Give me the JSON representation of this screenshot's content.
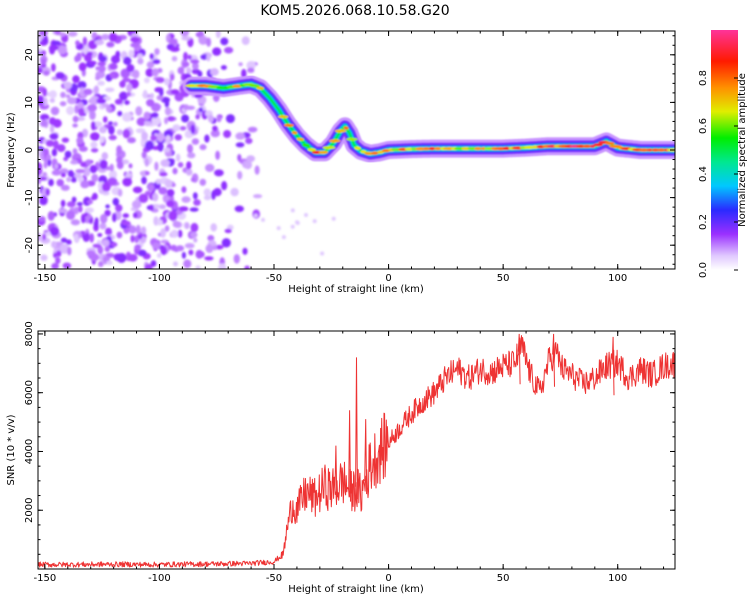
{
  "title": "KOM5.2026.068.10.58.G20",
  "chart_data": [
    {
      "type": "heatmap",
      "name": "spectrogram",
      "xlabel": "Height of straight line (km)",
      "ylabel": "Frequency (Hz)",
      "xlim": [
        -153,
        125
      ],
      "ylim": [
        -25,
        25
      ],
      "xticks": [
        -150,
        -100,
        -50,
        0,
        50,
        100
      ],
      "yticks": [
        20,
        10,
        0,
        -10,
        -20
      ],
      "noise_region_x": [
        -153,
        -55
      ],
      "track": {
        "x": [
          -86,
          -80,
          -72,
          -65,
          -60,
          -56,
          -52,
          -48,
          -44,
          -40,
          -36,
          -32,
          -28,
          -24,
          -21,
          -19,
          -17,
          -15,
          -12,
          -8,
          -4,
          0,
          10,
          20,
          30,
          40,
          50,
          60,
          70,
          80,
          90,
          95,
          100,
          110,
          125
        ],
        "frequency": [
          13.5,
          13.5,
          13.0,
          13.5,
          13.8,
          13.0,
          11.0,
          8.5,
          5.5,
          3.0,
          1.0,
          -0.5,
          -0.5,
          1.5,
          4.0,
          5.0,
          3.5,
          1.0,
          -0.2,
          -0.8,
          -0.5,
          0.0,
          0.2,
          0.3,
          0.3,
          0.3,
          0.3,
          0.5,
          0.8,
          0.8,
          0.8,
          1.8,
          0.5,
          0.0,
          0.0
        ],
        "amplitude": [
          0.75,
          0.85,
          0.7,
          0.75,
          0.8,
          0.7,
          0.65,
          0.6,
          0.85,
          0.7,
          0.75,
          0.9,
          0.75,
          0.7,
          0.85,
          0.8,
          0.65,
          0.85,
          0.8,
          0.7,
          0.9,
          0.85,
          0.75,
          0.95,
          0.75,
          0.8,
          0.85,
          0.8,
          0.9,
          0.95,
          0.9,
          0.95,
          0.85,
          0.8,
          0.9
        ]
      }
    },
    {
      "type": "colorbar",
      "label": "Normalized spectral amplitude",
      "range": [
        0,
        1
      ],
      "ticks": [
        "0.0",
        "0.2",
        "0.4",
        "0.6",
        "0.8"
      ]
    },
    {
      "type": "line",
      "name": "snr",
      "xlabel": "Height of straight line (km)",
      "ylabel": "SNR (10 * v/v)",
      "xlim": [
        -153,
        125
      ],
      "ylim": [
        0,
        8100
      ],
      "xticks": [
        -150,
        -100,
        -50,
        0,
        50,
        100
      ],
      "yticks": [
        8000,
        6000,
        4000,
        2000
      ],
      "color": "#ee3333",
      "series": {
        "x": [
          -153,
          -140,
          -120,
          -100,
          -80,
          -60,
          -50,
          -46,
          -44,
          -42,
          -40,
          -36,
          -32,
          -28,
          -24,
          -20,
          -16,
          -14,
          -12,
          -8,
          -4,
          0,
          5,
          10,
          15,
          20,
          25,
          30,
          35,
          40,
          45,
          50,
          55,
          58,
          62,
          66,
          70,
          73,
          76,
          80,
          85,
          90,
          95,
          100,
          105,
          110,
          115,
          120,
          125
        ],
        "y": [
          150,
          150,
          160,
          150,
          170,
          190,
          250,
          500,
          1500,
          2200,
          2000,
          2600,
          2400,
          2800,
          2700,
          3000,
          2600,
          2800,
          2500,
          3500,
          4000,
          4300,
          4800,
          5300,
          5700,
          6000,
          6500,
          6800,
          6500,
          6800,
          6700,
          6900,
          7000,
          7600,
          6600,
          6000,
          7100,
          7400,
          6800,
          6600,
          6300,
          6500,
          6900,
          7000,
          6500,
          6800,
          6600,
          6900,
          7000
        ]
      },
      "spikes": [
        {
          "x": -14,
          "y": 7200
        },
        {
          "x": -17,
          "y": 5400
        },
        {
          "x": -10,
          "y": 5100
        },
        {
          "x": -23,
          "y": 4200
        },
        {
          "x": -8,
          "y": 4300
        },
        {
          "x": 57,
          "y": 8000
        },
        {
          "x": 72,
          "y": 8000
        },
        {
          "x": 98,
          "y": 7900
        }
      ]
    }
  ]
}
